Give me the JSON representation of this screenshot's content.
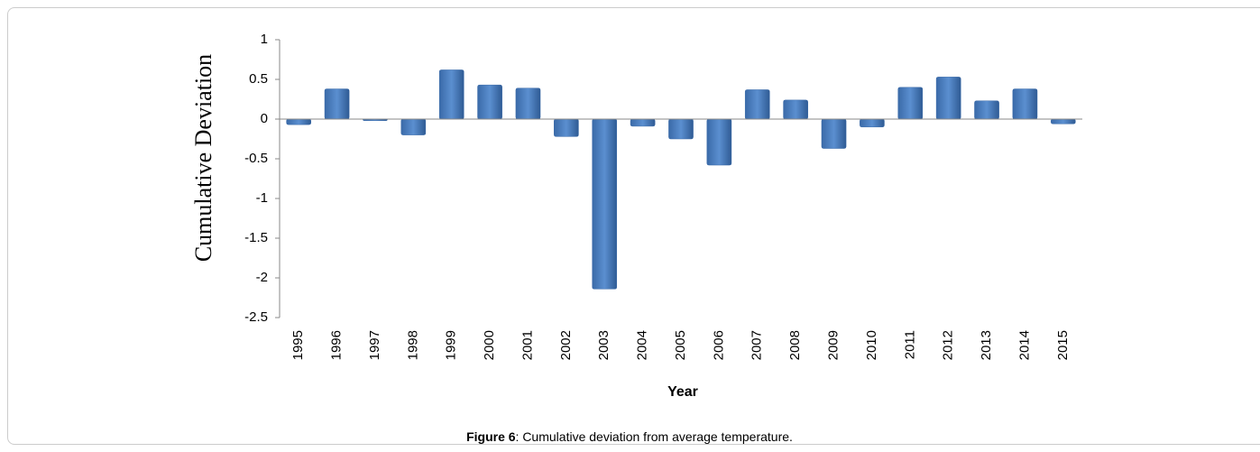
{
  "chart_data": {
    "type": "bar",
    "y_label": "Cumulative Deviation",
    "x_label": "Year",
    "categories": [
      "1995",
      "1996",
      "1997",
      "1998",
      "1999",
      "2000",
      "2001",
      "2002",
      "2003",
      "2004",
      "2005",
      "2006",
      "2007",
      "2008",
      "2009",
      "2010",
      "2011",
      "2012",
      "2013",
      "2014",
      "2015"
    ],
    "values": [
      -0.07,
      0.38,
      -0.02,
      -0.2,
      0.62,
      0.43,
      0.39,
      -0.22,
      -2.14,
      -0.09,
      -0.25,
      -0.58,
      0.37,
      0.24,
      -0.37,
      -0.1,
      0.4,
      0.53,
      0.23,
      0.38,
      -0.06
    ],
    "color": "#4f81bd",
    "ylim": [
      -2.5,
      1
    ],
    "yticks": [
      1,
      0.5,
      0,
      -0.5,
      -1,
      -1.5,
      -2,
      -2.5
    ]
  },
  "caption": {
    "label": "Figure 6",
    "text": ": Cumulative deviation from average temperature."
  }
}
